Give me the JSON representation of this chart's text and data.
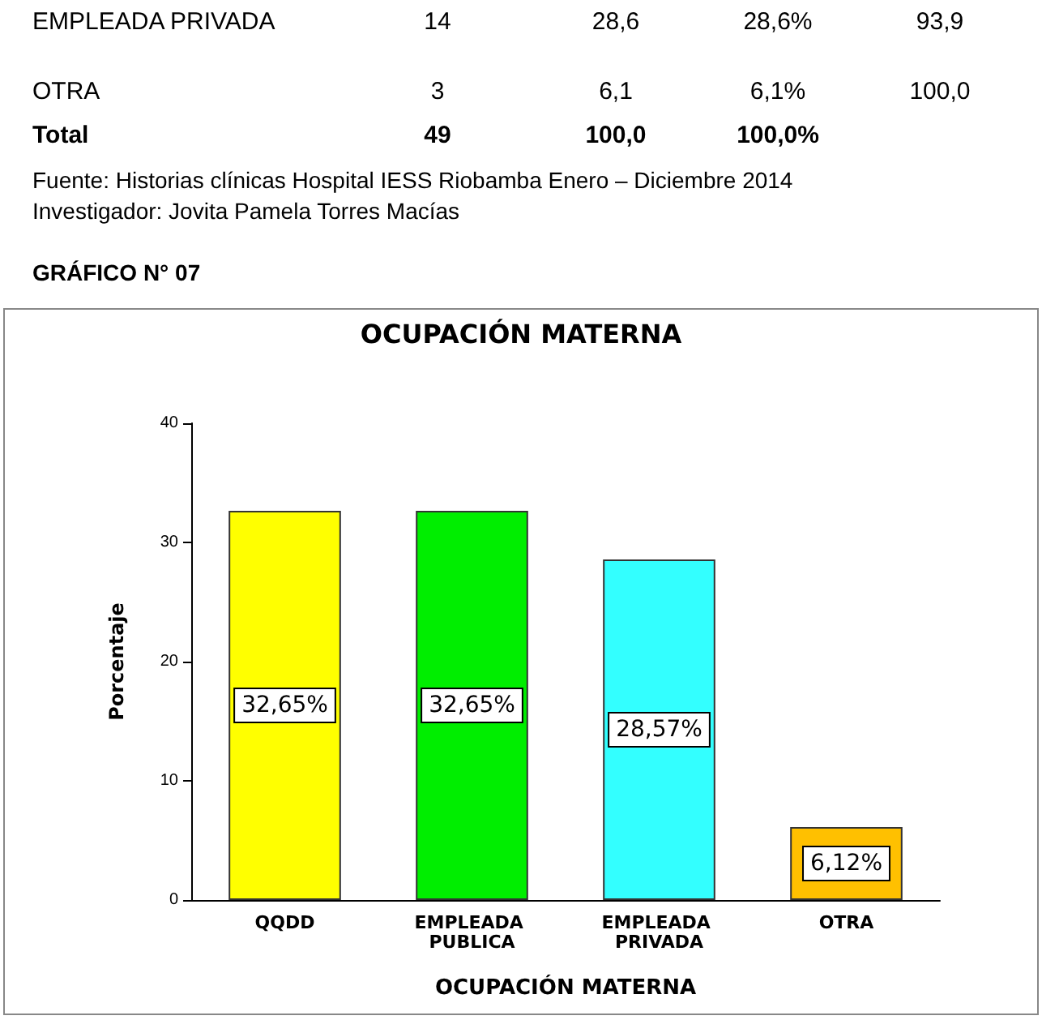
{
  "chart_data": {
    "type": "bar",
    "title": "OCUPACIÓN MATERNA",
    "xlabel": "OCUPACIÓN MATERNA",
    "ylabel": "Porcentaje",
    "categories": [
      "QQDD",
      "EMPLEADA PUBLICA",
      "EMPLEADA PRIVADA",
      "OTRA"
    ],
    "values": [
      32.65,
      32.65,
      28.57,
      6.12
    ],
    "colors": [
      "#ffff00",
      "#00ee00",
      "#33ffff",
      "#ffc000"
    ],
    "value_labels": [
      "32,65%",
      "32,65%",
      "28,57%",
      "6,12%"
    ],
    "ylim": [
      0,
      40
    ],
    "yticks": [
      0,
      10,
      20,
      30,
      40
    ],
    "grid": false,
    "annotations": [
      "EMPLEADA PRIVADA",
      "14",
      "28,6",
      "28,6%",
      "93,9",
      "OTRA",
      "3",
      "6,1",
      "6,1%",
      "100,0",
      "Total",
      "49",
      "100,0",
      "100,0%",
      "Fuente: Historias clínicas Hospital IESS Riobamba Enero – Diciembre 2014",
      "Investigador: Jovita Pamela Torres Macías",
      "GRÁFICO N° 07"
    ]
  }
}
